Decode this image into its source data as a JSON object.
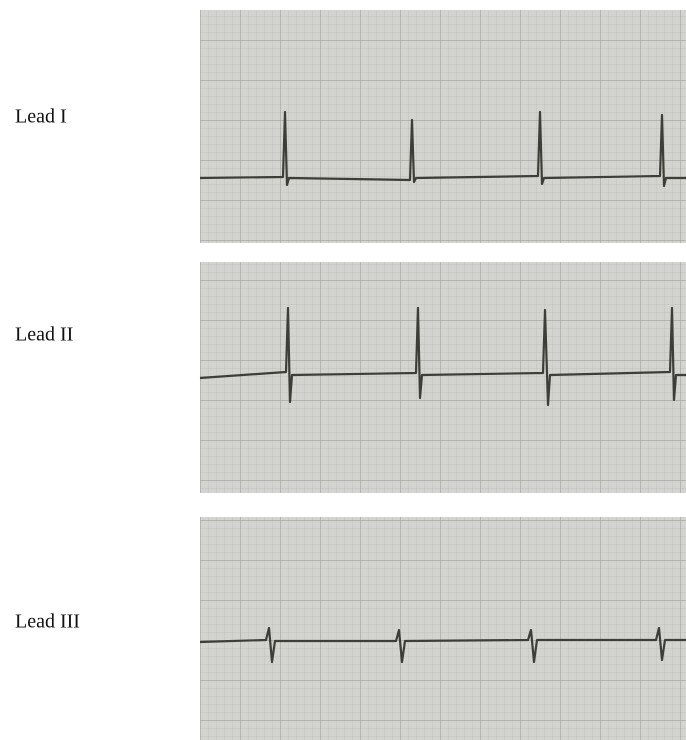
{
  "panels": [
    {
      "label": "Lead I"
    },
    {
      "label": "Lead II"
    },
    {
      "label": "Lead III"
    }
  ]
}
